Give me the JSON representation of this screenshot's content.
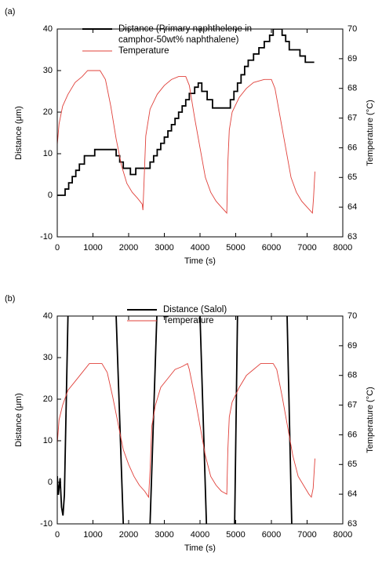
{
  "chart_data": [
    {
      "type": "line",
      "label": "(a)",
      "xlabel": "Time (s)",
      "ylabel": "Distance (μm)",
      "y2label": "Temperature (°C)",
      "xlim": [
        0,
        8000
      ],
      "xticks": [
        0,
        1000,
        2000,
        3000,
        4000,
        5000,
        6000,
        7000,
        8000
      ],
      "ylim": [
        -10,
        40
      ],
      "yticks": [
        -10,
        0,
        10,
        20,
        30,
        40
      ],
      "y2lim": [
        63,
        70
      ],
      "y2ticks": [
        63,
        64,
        65,
        66,
        67,
        68,
        69,
        70
      ],
      "series": [
        {
          "name": "Distance (Primary naphthelene in camphor-50wt% naphthalene)",
          "color": "#000000",
          "drawstyle": "steps-post",
          "x": [
            0,
            220,
            320,
            420,
            520,
            620,
            760,
            1050,
            1650,
            1750,
            1850,
            2050,
            2200,
            2600,
            2700,
            2800,
            2900,
            3000,
            3100,
            3200,
            3300,
            3400,
            3500,
            3600,
            3700,
            3850,
            3950,
            4050,
            4200,
            4350,
            4850,
            4950,
            5050,
            5150,
            5250,
            5350,
            5500,
            5650,
            5800,
            5950,
            6050,
            6300,
            6400,
            6500,
            6800,
            6950,
            7200
          ],
          "values": [
            0,
            1.5,
            3,
            4.5,
            6,
            7.5,
            9.5,
            11,
            9.5,
            8,
            6.5,
            5,
            6.5,
            8,
            9.5,
            11,
            12.5,
            14,
            15.5,
            17,
            18.5,
            20,
            21.5,
            23,
            24.5,
            26,
            27,
            25,
            23,
            21,
            23,
            25,
            27,
            29,
            31,
            32.5,
            34,
            35.5,
            37,
            38.5,
            40,
            38.5,
            37,
            35,
            33.5,
            32,
            32
          ]
        },
        {
          "name": "Temperature",
          "color": "#e0403a",
          "axis": "y2",
          "x": [
            0,
            50,
            150,
            300,
            500,
            700,
            850,
            1200,
            1350,
            1500,
            1650,
            1800,
            1950,
            2100,
            2250,
            2380,
            2400,
            2430,
            2480,
            2600,
            2800,
            3000,
            3200,
            3400,
            3600,
            3700,
            3850,
            4000,
            4150,
            4300,
            4450,
            4600,
            4750,
            4780,
            4820,
            4900,
            5100,
            5300,
            5500,
            5800,
            6000,
            6100,
            6250,
            6400,
            6550,
            6700,
            6850,
            7000,
            7150,
            7180,
            7220
          ],
          "values": [
            66.1,
            66.8,
            67.4,
            67.8,
            68.2,
            68.4,
            68.6,
            68.6,
            68.3,
            67.4,
            66.3,
            65.4,
            64.8,
            64.5,
            64.3,
            64.1,
            63.9,
            64.8,
            66.4,
            67.3,
            67.8,
            68.1,
            68.3,
            68.4,
            68.4,
            68.1,
            67.0,
            66.0,
            65.0,
            64.5,
            64.2,
            64.0,
            63.8,
            65.5,
            66.6,
            67.2,
            67.7,
            68.0,
            68.2,
            68.3,
            68.3,
            68.0,
            67.0,
            66.0,
            65.0,
            64.5,
            64.2,
            64.0,
            63.8,
            64.3,
            65.2
          ]
        }
      ]
    },
    {
      "type": "line",
      "label": "(b)",
      "xlabel": "Time (s)",
      "ylabel": "Distance (μm)",
      "y2label": "Temperature (°C)",
      "xlim": [
        0,
        8000
      ],
      "xticks": [
        0,
        1000,
        2000,
        3000,
        4000,
        5000,
        6000,
        7000,
        8000
      ],
      "ylim": [
        -10,
        40
      ],
      "yticks": [
        -10,
        0,
        10,
        20,
        30,
        40
      ],
      "y2lim": [
        63,
        70
      ],
      "y2ticks": [
        63,
        64,
        65,
        66,
        67,
        68,
        69,
        70
      ],
      "series": [
        {
          "name": "Distance (Salol)",
          "color": "#000000",
          "x": [
            0,
            30,
            80,
            120,
            160,
            200,
            300,
            900,
            1650,
            1850,
            2200,
            2600,
            2790,
            3400,
            4000,
            4180,
            4600,
            4970,
            5050,
            5700,
            6440,
            6570
          ],
          "values": [
            1.5,
            -3,
            1,
            -6,
            -8,
            -3,
            40,
            null,
            40,
            -10,
            null,
            -10,
            40,
            null,
            40,
            -10,
            null,
            -10,
            40,
            null,
            40,
            -10
          ]
        },
        {
          "name": "Temperature",
          "color": "#e0403a",
          "axis": "y2",
          "x": [
            0,
            50,
            150,
            300,
            500,
            700,
            900,
            1250,
            1400,
            1550,
            1700,
            1850,
            2000,
            2150,
            2300,
            2450,
            2560,
            2600,
            2650,
            2750,
            2900,
            3100,
            3300,
            3500,
            3650,
            3700,
            3850,
            4000,
            4150,
            4300,
            4450,
            4600,
            4750,
            4780,
            4820,
            4900,
            5100,
            5300,
            5500,
            5700,
            6050,
            6150,
            6300,
            6450,
            6600,
            6750,
            6900,
            7050,
            7120,
            7170,
            7220
          ],
          "values": [
            65.7,
            66.5,
            67.0,
            67.5,
            67.8,
            68.1,
            68.4,
            68.4,
            68.1,
            67.3,
            66.4,
            65.5,
            65.0,
            64.6,
            64.3,
            64.1,
            63.9,
            64.8,
            66.3,
            67.0,
            67.6,
            67.9,
            68.2,
            68.3,
            68.4,
            68.2,
            67.3,
            66.3,
            65.3,
            64.6,
            64.3,
            64.1,
            64.0,
            65.5,
            66.6,
            67.1,
            67.6,
            68.0,
            68.2,
            68.4,
            68.4,
            68.2,
            67.3,
            66.3,
            65.3,
            64.6,
            64.3,
            64.0,
            63.9,
            64.2,
            65.2
          ]
        }
      ]
    }
  ]
}
